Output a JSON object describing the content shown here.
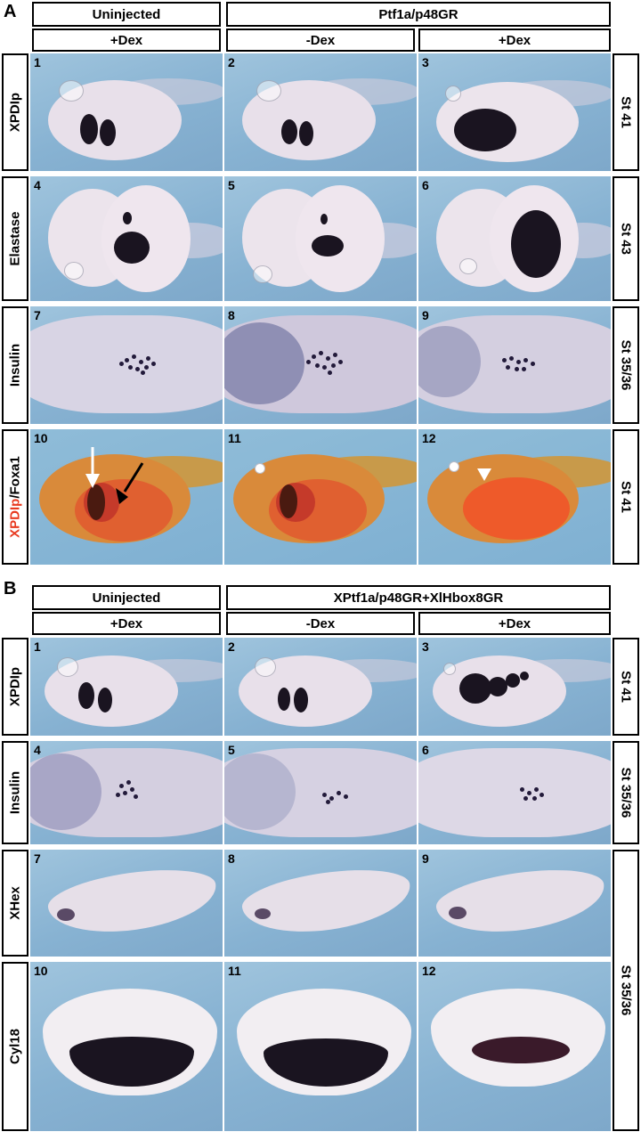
{
  "panelA": {
    "letter": "A",
    "group_uninjected": "Uninjected",
    "group_injected": "Ptf1a/p48GR",
    "cond_uninj": "+Dex",
    "cond_minus": "-Dex",
    "cond_plus": "+Dex",
    "rows": [
      {
        "label": "XPDIp",
        "stage": "St 41",
        "nums": [
          "1",
          "2",
          "3"
        ]
      },
      {
        "label": "Elastase",
        "stage": "St 43",
        "nums": [
          "4",
          "5",
          "6"
        ]
      },
      {
        "label": "Insulin",
        "stage": "St 35/36",
        "nums": [
          "7",
          "8",
          "9"
        ]
      },
      {
        "label_red": "XPDIp",
        "label_black": "/Foxa1",
        "stage": "St 41",
        "nums": [
          "10",
          "11",
          "12"
        ]
      }
    ]
  },
  "panelB": {
    "letter": "B",
    "group_uninjected": "Uninjected",
    "group_injected": "XPtf1a/p48GR+XlHbox8GR",
    "cond_uninj": "+Dex",
    "cond_minus": "-Dex",
    "cond_plus": "+Dex",
    "rows": [
      {
        "label": "XPDIp",
        "stage": "St 41",
        "nums": [
          "1",
          "2",
          "3"
        ]
      },
      {
        "label": "Insulin",
        "stage": "St 35/36",
        "nums": [
          "4",
          "5",
          "6"
        ]
      },
      {
        "label": "XHex",
        "nums": [
          "7",
          "8",
          "9"
        ]
      },
      {
        "label": "Cyl18",
        "nums": [
          "10",
          "11",
          "12"
        ]
      }
    ],
    "stage_shared": "St 35/36"
  },
  "colors": {
    "red_label": "#e8391f",
    "background_blue": "#8fb8d6"
  }
}
